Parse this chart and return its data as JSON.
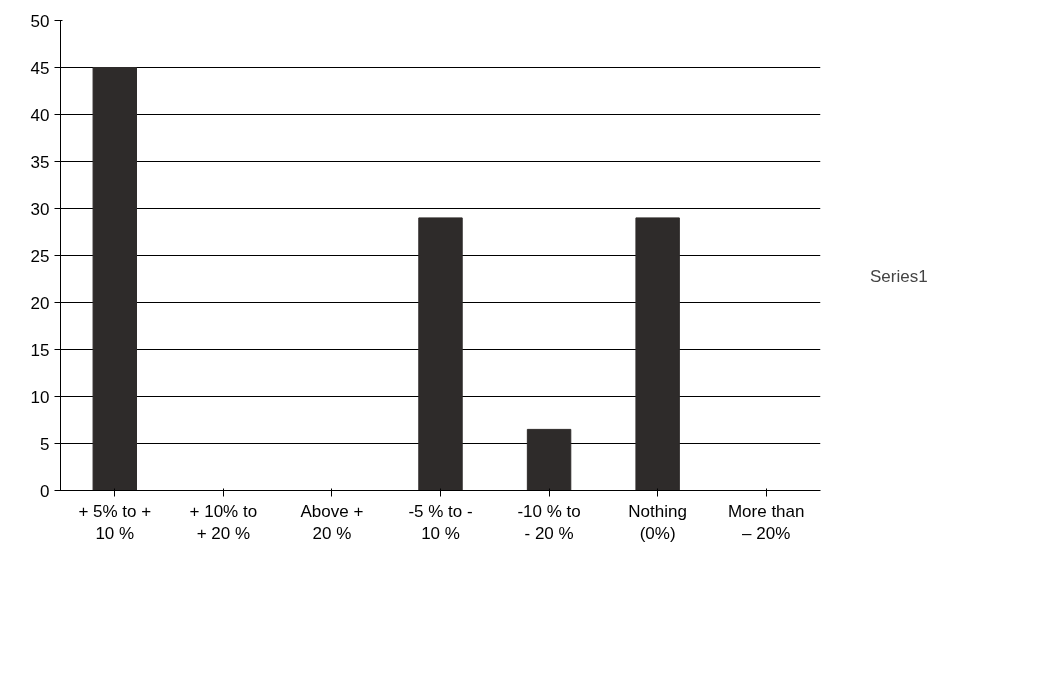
{
  "chart_data": {
    "type": "bar",
    "categories": [
      "+ 5% to + 10 %",
      "+ 10% to + 20 %",
      "Above + 20 %",
      "-5 % to - 10 %",
      "-10 % to - 20 %",
      "Nothing (0%)",
      "More than – 20%"
    ],
    "series": [
      {
        "name": "Series1",
        "color": "#2e2b2a",
        "values": [
          45,
          0,
          0,
          29,
          6.5,
          29,
          0
        ]
      }
    ],
    "ylim": [
      0,
      50
    ],
    "yticks": [
      0,
      5,
      10,
      15,
      20,
      25,
      30,
      35,
      40,
      45,
      50
    ],
    "grid": "y",
    "legend": "right"
  }
}
